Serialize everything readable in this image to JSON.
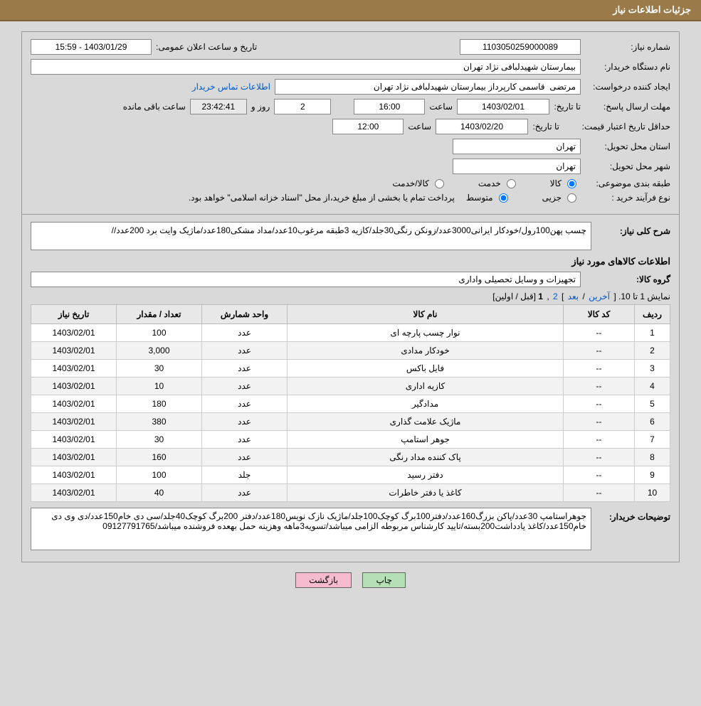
{
  "header": {
    "title": "جزئیات اطلاعات نیاز"
  },
  "info": {
    "need_no_label": "شماره نیاز:",
    "need_no": "1103050259000089",
    "announce_label": "تاریخ و ساعت اعلان عمومی:",
    "announce_value": "15:59 - 1403/01/29",
    "buyer_label": "نام دستگاه خریدار:",
    "buyer": "بیمارستان شهیدلبافی نژاد تهران",
    "requester_label": "ایجاد کننده درخواست:",
    "requester": "مرتضی  قاسمی کارپرداز بیمارستان شهیدلبافی نژاد تهران",
    "contact_link": "اطلاعات تماس خریدار",
    "deadline_label": "مهلت ارسال پاسخ:",
    "to_date_label": "تا تاریخ:",
    "deadline_date": "1403/02/01",
    "hour_label": "ساعت",
    "deadline_hour": "16:00",
    "days_value": "2",
    "days_label": "روز و",
    "countdown": "23:42:41",
    "remain_label": "ساعت باقی مانده",
    "validity_label": "حداقل تاریخ اعتبار قیمت:",
    "validity_date": "1403/02/20",
    "validity_hour": "12:00",
    "province_label": "استان محل تحویل:",
    "province": "تهران",
    "city_label": "شهر محل تحویل:",
    "city": "تهران",
    "category_label": "طبقه بندی موضوعی:",
    "cat_goods": "کالا",
    "cat_service": "خدمت",
    "cat_goods_service": "کالا/خدمت",
    "process_label": "نوع فرآیند خرید :",
    "proc_partial": "جزیی",
    "proc_medium": "متوسط",
    "process_note": "پرداخت تمام یا بخشی از مبلغ خرید،از محل \"اسناد خزانه اسلامی\" خواهد بود."
  },
  "desc": {
    "summary_label": "شرح کلی نیاز:",
    "summary": "چسب پهن100رول/خودکار ایرانی3000عدد/زونکن رنگی30جلد/کازیه 3طبقه مرغوب10عدد/مداد مشکی180عدد/ماژیک وایت برد 200عدد//",
    "section_title": "اطلاعات کالاهای مورد نیاز",
    "group_label": "گروه کالا:",
    "group_value": "تجهیزات و وسایل تحصیلی واداری"
  },
  "pager": {
    "text_a": "نمایش 1 تا 10. [ ",
    "last": "آخرین",
    "sep1": " / ",
    "next": "بعد",
    "sep2": " ] ",
    "p2": "2",
    "comma": " ,",
    "p1": "1",
    "text_b": " [قبل / اولین]"
  },
  "table": {
    "headers": {
      "row": "ردیف",
      "code": "کد کالا",
      "name": "نام کالا",
      "unit": "واحد شمارش",
      "qty": "تعداد / مقدار",
      "date": "تاریخ نیاز"
    },
    "rows": [
      {
        "n": "1",
        "code": "--",
        "name": "نوار چسب پارچه ای",
        "unit": "عدد",
        "qty": "100",
        "date": "1403/02/01"
      },
      {
        "n": "2",
        "code": "--",
        "name": "خودکار مدادی",
        "unit": "عدد",
        "qty": "3,000",
        "date": "1403/02/01"
      },
      {
        "n": "3",
        "code": "--",
        "name": "فایل باکس",
        "unit": "عدد",
        "qty": "30",
        "date": "1403/02/01"
      },
      {
        "n": "4",
        "code": "--",
        "name": "کازیه اداری",
        "unit": "عدد",
        "qty": "10",
        "date": "1403/02/01"
      },
      {
        "n": "5",
        "code": "--",
        "name": "مدادگیر",
        "unit": "عدد",
        "qty": "180",
        "date": "1403/02/01"
      },
      {
        "n": "6",
        "code": "--",
        "name": "ماژیک علامت گذاری",
        "unit": "عدد",
        "qty": "380",
        "date": "1403/02/01"
      },
      {
        "n": "7",
        "code": "--",
        "name": "جوهر استامپ",
        "unit": "عدد",
        "qty": "30",
        "date": "1403/02/01"
      },
      {
        "n": "8",
        "code": "--",
        "name": "پاک کننده مداد رنگی",
        "unit": "عدد",
        "qty": "160",
        "date": "1403/02/01"
      },
      {
        "n": "9",
        "code": "--",
        "name": "دفتر رسید",
        "unit": "جلد",
        "qty": "100",
        "date": "1403/02/01"
      },
      {
        "n": "10",
        "code": "--",
        "name": "کاغذ یا دفتر خاطرات",
        "unit": "عدد",
        "qty": "40",
        "date": "1403/02/01"
      }
    ]
  },
  "buyer_remarks": {
    "label": "توضیحات خریدار:",
    "text": "جوهراستامپ 30عدد/پاکن بزرگ160عدد/دفتر100برگ کوچک100جلد/ماژیک نازک نویس180عدد/دفتر 200برگ کوچک40جلد/سی دی خام150عدد/دی وی دی خام150عدد/کاغذ یادداشت200بسته/تایید کارشناس مربوطه الزامی میباشد/تسویه3ماهه وهزینه حمل بهعده فروشنده میباشد/09127791765"
  },
  "buttons": {
    "print": "چاپ",
    "back": "بازگشت"
  },
  "style": {
    "accent": "#9b7a4a",
    "bg": "#d9d9d9",
    "link": "#0058cc",
    "btn_green": "#b5e0b5",
    "btn_pink": "#f5bcd0"
  }
}
